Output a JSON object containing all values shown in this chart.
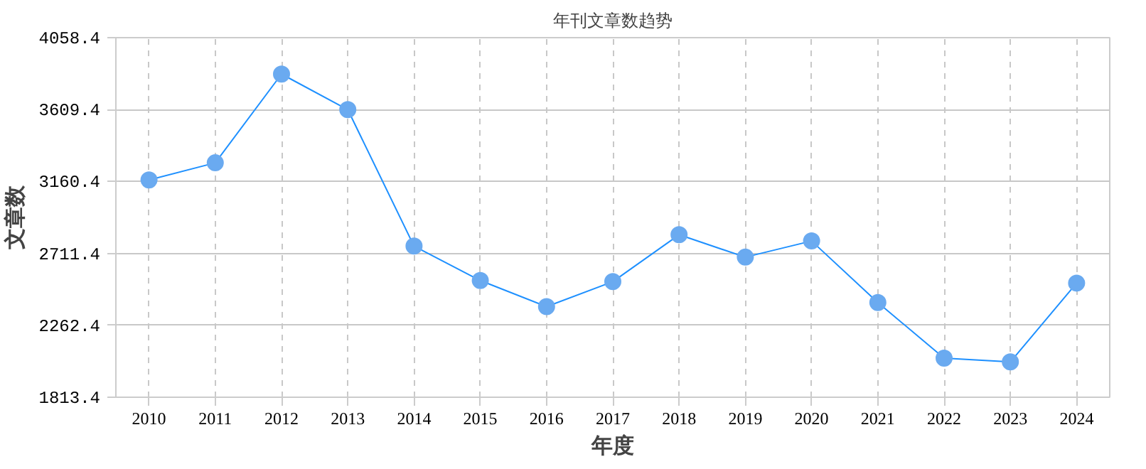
{
  "chart_data": {
    "type": "line",
    "title": "年刊文章数趋势",
    "xlabel": "年度",
    "ylabel": "文章数",
    "categories": [
      "2010",
      "2011",
      "2012",
      "2013",
      "2014",
      "2015",
      "2016",
      "2017",
      "2018",
      "2019",
      "2020",
      "2021",
      "2022",
      "2023",
      "2024"
    ],
    "series": [
      {
        "color": "#1e90ff",
        "values": [
          3170,
          3277,
          3831,
          3609,
          2757,
          2542,
          2379,
          2535,
          2828,
          2688,
          2789,
          2405,
          2057,
          2034,
          2526
        ]
      }
    ],
    "ylim": [
      1813.4,
      4058.4
    ],
    "yticks": [
      1813.4,
      2262.4,
      2711.4,
      3160.4,
      3609.4,
      4058.4
    ],
    "grid": true,
    "marker": "circle",
    "line_style": "solid"
  }
}
